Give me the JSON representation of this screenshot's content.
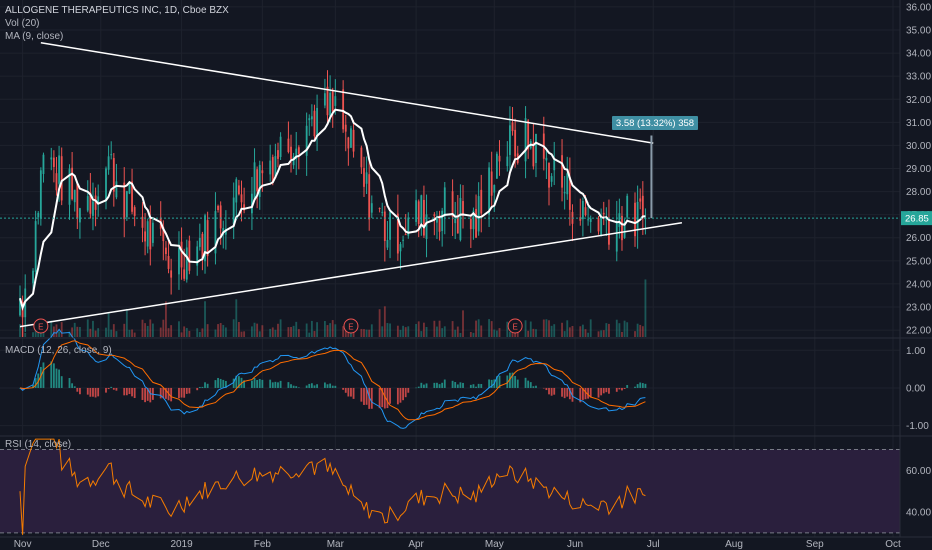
{
  "header": {
    "title": "ALLOGENE THERAPEUTICS INC, 1D, Cboe BZX",
    "vol_label": "Vol (20)",
    "ma_label": "MA (9, close)",
    "macd_label": "MACD (12, 26, close, 9)",
    "rsi_label": "RSI (14, close)"
  },
  "measure_label": "3.58 (13.32%) 358",
  "last_price_label": "26.85",
  "earnings_marker": "E",
  "colors": {
    "up": "#26a69a",
    "down": "#ef5350",
    "ma": "#ffffff",
    "macd": "#2196f3",
    "signal": "#ff6d00",
    "rsi": "#f57c00",
    "rsi_band": "#2a1f3d",
    "measure": "#3f8fa3",
    "last": "#26a69a"
  },
  "chart_data": [
    {
      "type": "candlestick",
      "price_ticks": [
        "36.00",
        "35.00",
        "34.00",
        "33.00",
        "32.00",
        "31.00",
        "30.00",
        "29.00",
        "28.00",
        "27.00",
        "26.00",
        "25.00",
        "24.00",
        "23.00",
        "22.00"
      ],
      "x_ticks": [
        "Nov",
        "Dec",
        "2019",
        "Feb",
        "Mar",
        "Apr",
        "May",
        "Jun",
        "Jul",
        "Aug",
        "Sep",
        "Oct"
      ],
      "ylim": [
        21.7,
        36.3
      ],
      "ma_close_approx": [
        [
          "2018-11-01",
          23.4
        ],
        [
          "2018-11-05",
          25.5
        ],
        [
          "2018-11-09",
          29.6
        ],
        [
          "2018-11-15",
          28.6
        ],
        [
          "2018-11-23",
          27.4
        ],
        [
          "2018-11-28",
          27.9
        ],
        [
          "2018-12-04",
          29.3
        ],
        [
          "2018-12-10",
          27.8
        ],
        [
          "2018-12-20",
          26.0
        ],
        [
          "2018-12-28",
          24.9
        ],
        [
          "2019-01-08",
          25.8
        ],
        [
          "2019-01-18",
          27.3
        ],
        [
          "2019-01-28",
          28.5
        ],
        [
          "2019-02-08",
          29.9
        ],
        [
          "2019-02-20",
          31.2
        ],
        [
          "2019-03-01",
          31.5
        ],
        [
          "2019-03-12",
          28.2
        ],
        [
          "2019-03-22",
          26.1
        ],
        [
          "2019-04-01",
          26.9
        ],
        [
          "2019-04-12",
          27.3
        ],
        [
          "2019-04-24",
          26.6
        ],
        [
          "2019-05-03",
          29.8
        ],
        [
          "2019-05-14",
          30.2
        ],
        [
          "2019-05-24",
          28.8
        ],
        [
          "2019-06-04",
          26.9
        ],
        [
          "2019-06-14",
          26.8
        ],
        [
          "2019-06-26",
          26.8
        ]
      ],
      "trendlines": [
        {
          "name": "upper",
          "from": [
            "2018-11-08",
            34.45
          ],
          "to": [
            "2019-07-01",
            30.1
          ]
        },
        {
          "name": "lower",
          "from": [
            "2018-10-31",
            22.15
          ],
          "to": [
            "2019-07-12",
            26.65
          ]
        }
      ],
      "macd_ticks": [
        "1.00",
        "0.00",
        "-1.00"
      ],
      "macd_ylim": [
        -1.25,
        1.3
      ],
      "rsi_ticks": [
        "60.00",
        "40.00"
      ],
      "rsi_ylim": [
        28,
        76
      ],
      "rsi_band": [
        30,
        70
      ]
    }
  ]
}
